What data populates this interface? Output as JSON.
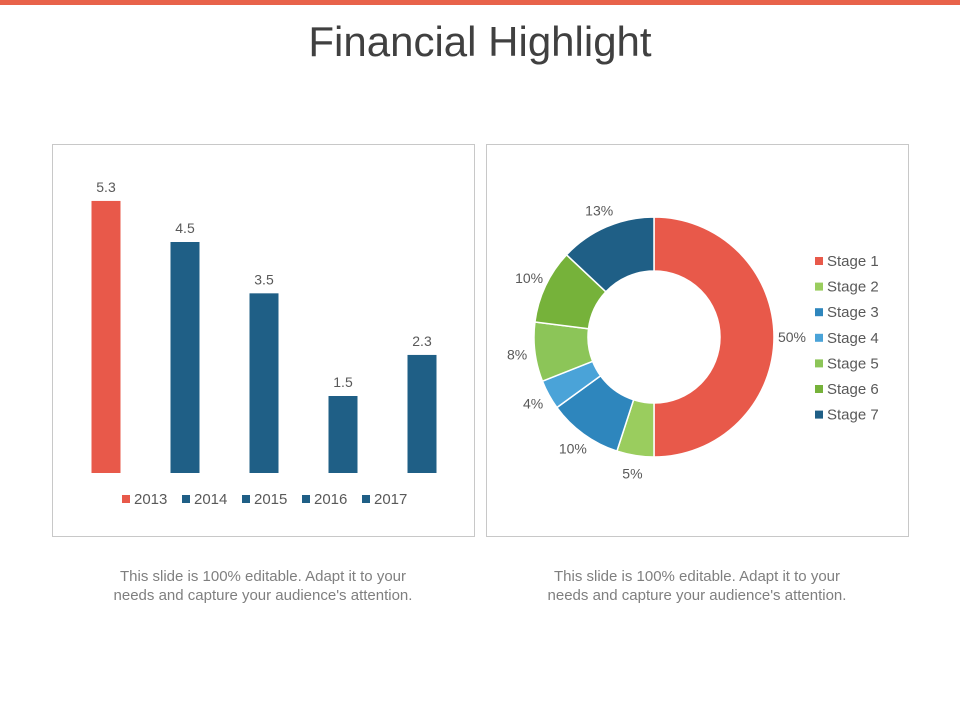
{
  "slide": {
    "title": "Financial Highlight",
    "accent_color": "#e8634a",
    "caption_left": "This slide is 100% editable. Adapt it to your needs and capture your audience's attention.",
    "caption_right": "This slide is 100% editable. Adapt it to your needs and capture your audience's attention."
  },
  "chart_data": [
    {
      "type": "bar",
      "categories": [
        "2013",
        "2014",
        "2015",
        "2016",
        "2017"
      ],
      "values": [
        5.3,
        4.5,
        3.5,
        1.5,
        2.3
      ],
      "data_labels": [
        "5.3",
        "4.5",
        "3.5",
        "1.5",
        "2.3"
      ],
      "colors": [
        "#e8594a",
        "#1f5f86",
        "#1f5f86",
        "#1f5f86",
        "#1f5f86"
      ],
      "ylim": [
        0,
        6
      ],
      "grid": false,
      "legend": "bottom"
    },
    {
      "type": "pie",
      "style": "donut",
      "categories": [
        "Stage 1",
        "Stage 2",
        "Stage 3",
        "Stage 4",
        "Stage 5",
        "Stage 6",
        "Stage 7"
      ],
      "values": [
        50,
        5,
        10,
        4,
        8,
        10,
        13
      ],
      "data_labels": [
        "50%",
        "5%",
        "10%",
        "4%",
        "8%",
        "10%",
        "13%"
      ],
      "colors": [
        "#e8594a",
        "#9acd5e",
        "#2e86bd",
        "#4aa3d8",
        "#8cc558",
        "#76b23a",
        "#1f5f86"
      ],
      "legend": "right"
    }
  ]
}
